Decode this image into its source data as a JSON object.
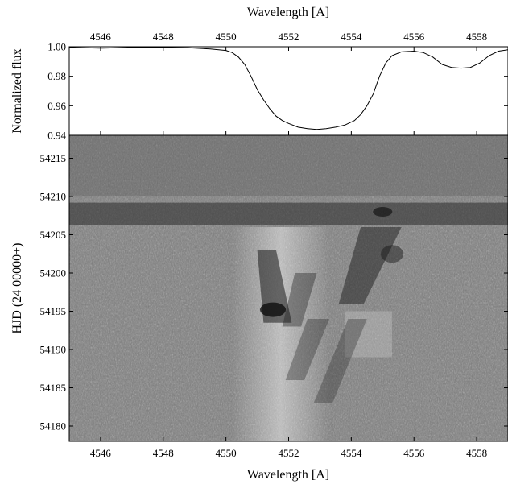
{
  "chart_data": [
    {
      "type": "line",
      "xlabel": "Wavelength [A]",
      "ylabel": "Normalized flux",
      "xlim": [
        4545,
        4559
      ],
      "ylim": [
        0.94,
        1.0
      ],
      "x_ticks": [
        4546,
        4548,
        4550,
        4552,
        4554,
        4556,
        4558
      ],
      "x_tick_labels": [
        "4546",
        "4548",
        "4550",
        "4552",
        "4554",
        "4556",
        "4558"
      ],
      "y_ticks": [
        0.94,
        0.96,
        0.98,
        1.0
      ],
      "y_tick_labels": [
        "0.94",
        "0.96",
        "0.98",
        "1.00"
      ],
      "series": [
        {
          "x": [
            4545.0,
            4546.0,
            4547.0,
            4548.0,
            4548.8,
            4549.5,
            4550.0,
            4550.2,
            4550.4,
            4550.6,
            4550.8,
            4551.0,
            4551.2,
            4551.4,
            4551.6,
            4551.8,
            4552.0,
            4552.3,
            4552.6,
            4552.9,
            4553.2,
            4553.5,
            4553.8,
            4554.1,
            4554.3,
            4554.5,
            4554.7,
            4554.9,
            4555.1,
            4555.3,
            4555.6,
            4556.0,
            4556.3,
            4556.6,
            4556.9,
            4557.2,
            4557.5,
            4557.8,
            4558.1,
            4558.4,
            4558.7,
            4559.0
          ],
          "y": [
            0.9995,
            0.999,
            0.9995,
            0.9995,
            0.9993,
            0.9985,
            0.9975,
            0.996,
            0.993,
            0.988,
            0.98,
            0.971,
            0.964,
            0.958,
            0.953,
            0.95,
            0.948,
            0.9455,
            0.9445,
            0.944,
            0.9445,
            0.9455,
            0.947,
            0.95,
            0.954,
            0.96,
            0.968,
            0.98,
            0.989,
            0.994,
            0.9965,
            0.997,
            0.996,
            0.993,
            0.988,
            0.986,
            0.9855,
            0.986,
            0.989,
            0.994,
            0.997,
            0.998
          ]
        }
      ]
    },
    {
      "type": "heatmap",
      "xlabel": "Wavelength [A]",
      "ylabel": "HJD (24 00000+)",
      "xlim": [
        4545,
        4559
      ],
      "ylim": [
        54178,
        54218
      ],
      "x_ticks": [
        4546,
        4548,
        4550,
        4552,
        4554,
        4556,
        4558
      ],
      "x_tick_labels": [
        "4546",
        "4548",
        "4550",
        "4552",
        "4554",
        "4556",
        "4558"
      ],
      "y_ticks": [
        54180,
        54185,
        54190,
        54195,
        54200,
        54205,
        54210,
        54215
      ],
      "y_tick_labels": [
        "54180",
        "54185",
        "54190",
        "54195",
        "54200",
        "54205",
        "54210",
        "54215"
      ],
      "colormap": "grayscale",
      "description_values": {
        "bright_band_x": [
          4550.5,
          4553.0
        ],
        "dark_features": [
          {
            "x": 4551.5,
            "y": 54195
          },
          {
            "x": 4554.5,
            "y": 54203
          },
          {
            "x": 4555.0,
            "y": 54208
          }
        ]
      }
    }
  ]
}
